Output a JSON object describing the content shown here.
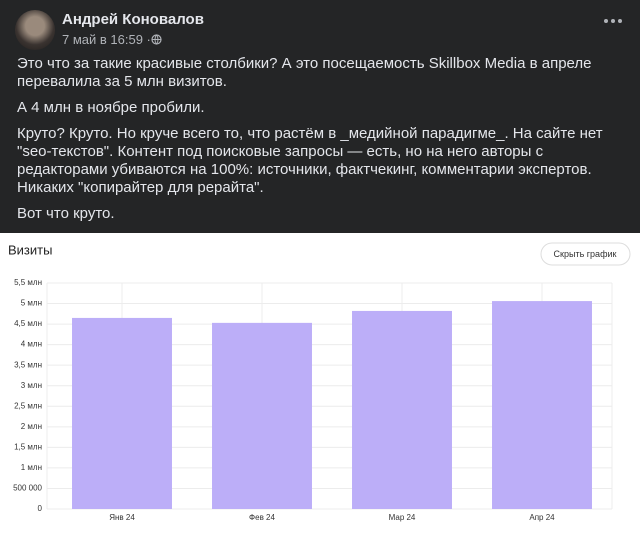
{
  "post": {
    "author": "Андрей Коновалов",
    "date": "7 май в 16:59 ·",
    "paragraphs": [
      "Это что за такие красивые столбики? А это посещаемость Skillbox Media в апреле перевалила за 5 млн визитов.",
      "А 4 млн в ноябре пробили.",
      "Круто? Круто. Но круче всего то, что растём в _медийной парадигме_. На сайте нет \"seo-текстов\". Контент под поисковые запросы — есть, но на него авторы с редакторами убиваются на 100%: источники, фактчекинг, комментарии экспертов. Никаких \"копирайтер для рерайта\".",
      "Вот что круто."
    ]
  },
  "chart_data": {
    "type": "bar",
    "title": "Визиты",
    "button": "Скрыть график",
    "categories": [
      "Янв 24",
      "Фев 24",
      "Мар 24",
      "Апр 24"
    ],
    "values": [
      4650000,
      4530000,
      4820000,
      5060000
    ],
    "color": "#bcaef8",
    "ylim": [
      0,
      5500000
    ],
    "yticks": [
      0,
      {
        "value": 500000,
        "label": "500 000"
      },
      {
        "value": 1000000,
        "label": "1 млн"
      },
      {
        "value": 1500000,
        "label": "1,5 млн"
      },
      {
        "value": 2000000,
        "label": "2 млн"
      },
      {
        "value": 2500000,
        "label": "2,5 млн"
      },
      {
        "value": 3000000,
        "label": "3 млн"
      },
      {
        "value": 3500000,
        "label": "3,5 млн"
      },
      {
        "value": 4000000,
        "label": "4 млн"
      },
      {
        "value": 4500000,
        "label": "4,5 млн"
      },
      {
        "value": 5000000,
        "label": "5 млн"
      },
      {
        "value": 5500000,
        "label": "5,5 млн"
      }
    ],
    "grid": true
  }
}
